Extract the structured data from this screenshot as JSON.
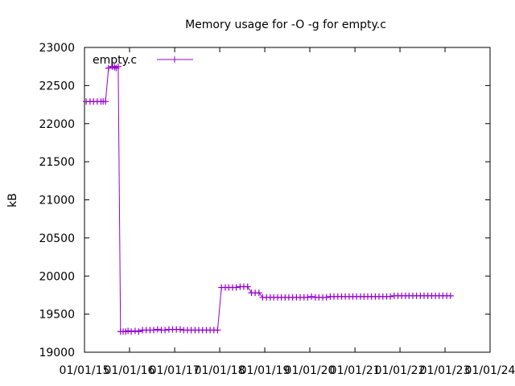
{
  "chart_data": {
    "type": "line",
    "title": "Memory usage for -O -g for empty.c",
    "xlabel": "",
    "ylabel": "kB",
    "ylim": [
      19000,
      23000
    ],
    "xlim": [
      "2015-01-01",
      "2024-01-01"
    ],
    "y_ticks": [
      19000,
      19500,
      20000,
      20500,
      21000,
      21500,
      22000,
      22500,
      23000
    ],
    "y_tick_labels": [
      "19000",
      "19500",
      "20000",
      "20500",
      "21000",
      "21500",
      "22000",
      "22500",
      "23000"
    ],
    "x_ticks": [
      "2015-01-01",
      "2016-01-01",
      "2017-01-01",
      "2018-01-01",
      "2019-01-01",
      "2020-01-01",
      "2021-01-01",
      "2022-01-01",
      "2023-01-01",
      "2024-01-01"
    ],
    "x_tick_labels": [
      "01/01/15",
      "01/01/16",
      "01/01/17",
      "01/01/18",
      "01/01/19",
      "01/01/20",
      "01/01/21",
      "01/01/22",
      "01/01/23",
      "01/01/24"
    ],
    "grid": false,
    "legend_position": "top-left",
    "series": [
      {
        "name": "empty.c",
        "color": "#9400d3",
        "marker": "plus",
        "x": [
          "2015-01-15",
          "2015-02-15",
          "2015-03-15",
          "2015-04-15",
          "2015-05-15",
          "2015-06-01",
          "2015-06-20",
          "2015-07-15",
          "2015-08-15",
          "2015-09-01",
          "2015-09-15",
          "2015-10-01",
          "2015-10-20",
          "2015-11-10",
          "2015-12-01",
          "2015-12-20",
          "2016-01-15",
          "2016-02-15",
          "2016-03-15",
          "2016-04-15",
          "2016-05-15",
          "2016-06-15",
          "2016-07-15",
          "2016-08-15",
          "2016-09-15",
          "2016-10-15",
          "2016-11-15",
          "2016-12-15",
          "2017-01-15",
          "2017-02-15",
          "2017-03-15",
          "2017-04-15",
          "2017-05-15",
          "2017-06-15",
          "2017-07-15",
          "2017-08-15",
          "2017-09-15",
          "2017-10-15",
          "2017-11-15",
          "2017-12-15",
          "2018-01-15",
          "2018-02-15",
          "2018-03-15",
          "2018-04-15",
          "2018-05-15",
          "2018-06-15",
          "2018-07-15",
          "2018-08-15",
          "2018-09-15",
          "2018-10-15",
          "2018-11-15",
          "2018-12-15",
          "2019-01-15",
          "2019-02-15",
          "2019-03-15",
          "2019-04-15",
          "2019-05-15",
          "2019-06-15",
          "2019-07-15",
          "2019-08-15",
          "2019-09-15",
          "2019-10-15",
          "2019-11-15",
          "2019-12-15",
          "2020-01-15",
          "2020-02-15",
          "2020-03-15",
          "2020-04-15",
          "2020-05-15",
          "2020-06-15",
          "2020-07-15",
          "2020-08-15",
          "2020-09-15",
          "2020-10-15",
          "2020-11-15",
          "2020-12-15",
          "2021-01-15",
          "2021-02-15",
          "2021-03-15",
          "2021-04-15",
          "2021-05-15",
          "2021-06-15",
          "2021-07-15",
          "2021-08-15",
          "2021-09-15",
          "2021-10-15",
          "2021-11-15",
          "2021-12-15",
          "2022-01-15",
          "2022-02-15",
          "2022-03-15",
          "2022-04-15",
          "2022-05-15",
          "2022-06-15",
          "2022-07-15",
          "2022-08-15",
          "2022-09-15",
          "2022-10-15",
          "2022-11-15",
          "2022-12-15",
          "2023-01-15",
          "2023-02-15"
        ],
        "y": [
          22290,
          22290,
          22290,
          22290,
          22290,
          22290,
          22290,
          22730,
          22750,
          22740,
          22730,
          22750,
          19270,
          19270,
          19270,
          19280,
          19270,
          19280,
          19270,
          19290,
          19290,
          19290,
          19290,
          19300,
          19290,
          19290,
          19300,
          19300,
          19300,
          19300,
          19290,
          19290,
          19290,
          19290,
          19290,
          19290,
          19290,
          19290,
          19290,
          19290,
          19850,
          19850,
          19850,
          19850,
          19850,
          19860,
          19860,
          19860,
          19780,
          19780,
          19780,
          19720,
          19720,
          19720,
          19720,
          19720,
          19720,
          19720,
          19720,
          19720,
          19720,
          19720,
          19720,
          19720,
          19730,
          19720,
          19720,
          19720,
          19720,
          19730,
          19730,
          19730,
          19730,
          19730,
          19730,
          19730,
          19730,
          19730,
          19730,
          19730,
          19730,
          19730,
          19730,
          19730,
          19730,
          19730,
          19740,
          19740,
          19740,
          19740,
          19740,
          19740,
          19740,
          19740,
          19740,
          19740,
          19740,
          19740,
          19740,
          19740,
          19740,
          19740
        ]
      }
    ]
  }
}
